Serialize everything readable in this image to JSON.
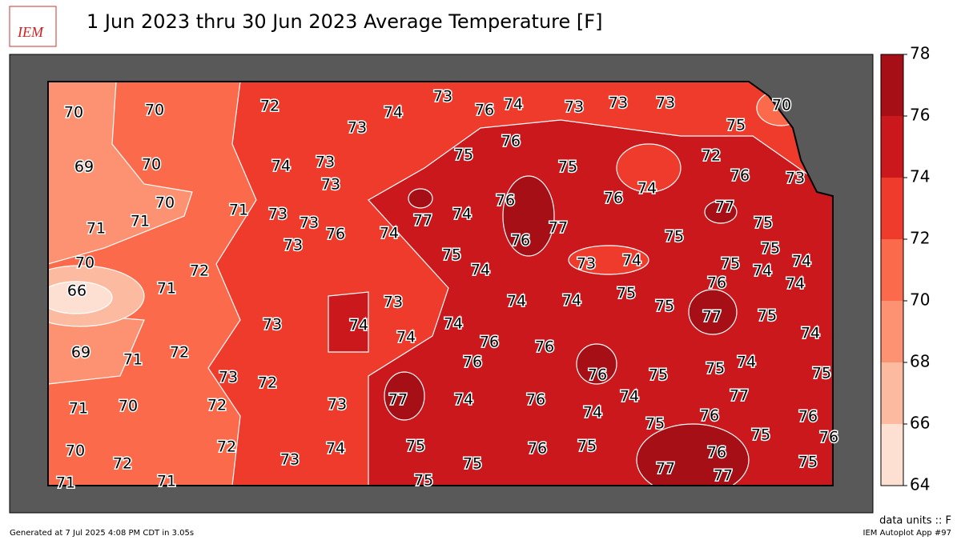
{
  "header": {
    "logo": "IEM",
    "title": "1 Jun 2023 thru 30 Jun 2023 Average Temperature [F]"
  },
  "map": {
    "stations": [
      70,
      70,
      72,
      73,
      74,
      73,
      76,
      74,
      73,
      73,
      73,
      70,
      75,
      69,
      70,
      74,
      73,
      73,
      75,
      76,
      75,
      72,
      76,
      73,
      70,
      71,
      71,
      71,
      73,
      73,
      76,
      74,
      77,
      74,
      76,
      76,
      74,
      77,
      75,
      73,
      77,
      76,
      75,
      74,
      75,
      75,
      70,
      72,
      73,
      74,
      75,
      74,
      74,
      66,
      71,
      73,
      74,
      74,
      75,
      75,
      76,
      74,
      77,
      75,
      73,
      74,
      74,
      74,
      76,
      76,
      74,
      69,
      71,
      72,
      76,
      76,
      75,
      75,
      74,
      75,
      73,
      72,
      77,
      74,
      76,
      74,
      77,
      73,
      71,
      70,
      72,
      74,
      75,
      76,
      76,
      75,
      76,
      72,
      70,
      75,
      76,
      75,
      74,
      72,
      73,
      75,
      77,
      76,
      77,
      75,
      71,
      71,
      75
    ]
  },
  "colorbar": {
    "ticks": [
      64,
      66,
      68,
      70,
      72,
      74,
      76,
      78
    ],
    "colors": [
      "#fee0d2",
      "#fcbba1",
      "#fc9272",
      "#fb6a4a",
      "#ef3b2c",
      "#cb181d",
      "#a50f15"
    ]
  },
  "footer": {
    "units": "data units :: F",
    "generated": "Generated at 7 Jul 2025 4:08 PM CDT in 3.05s",
    "app": "IEM Autoplot App #97"
  }
}
